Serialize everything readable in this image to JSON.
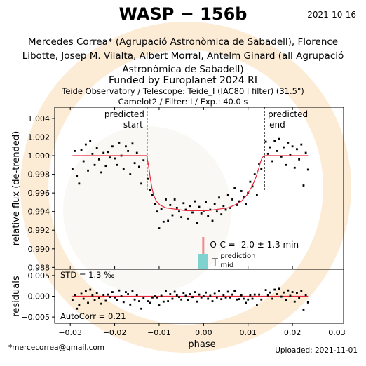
{
  "header": {
    "title": "WASP − 156b",
    "date": "2021-10-16",
    "authors_line1": "Mercedes Correa* (Agrupació Astronòmica de Sabadell), Florence",
    "authors_line2": "Libotte, Josep M. Vilalta, Albert Morral, Antelm Ginard (all Agrupació",
    "authors_line3": "Astronòmica de Sabadell)",
    "funded": "Funded by Europlanet 2024 RI",
    "observatory": "Teide Observatory / Telescope: Teide_I (IAC80 I filter) (31.5\")",
    "camera": "Camelot2 / Filter: I / Exp.: 40.0 s"
  },
  "footer": {
    "email": "*mercecorrea@gmail.com",
    "uploaded": "Uploaded: 2021-11-01"
  },
  "chart_data": [
    {
      "type": "scatter",
      "ylabel": "relative flux (de-trended)",
      "xlim": [
        -0.0335,
        0.0315
      ],
      "ylim": [
        0.9878,
        1.0052
      ],
      "xticks": [
        -0.03,
        -0.02,
        -0.01,
        0.0,
        0.01,
        0.02,
        0.03
      ],
      "xtick_labels": [
        "−0.03",
        "−0.02",
        "−0.01",
        "0.00",
        "0.01",
        "0.02",
        "0.03"
      ],
      "yticks": [
        0.988,
        0.99,
        0.992,
        0.994,
        0.996,
        0.998,
        1.0,
        1.002,
        1.004
      ],
      "ytick_labels": [
        "0.988",
        "0.990",
        "0.992",
        "0.994",
        "0.996",
        "0.998",
        "1.000",
        "1.002",
        "1.004"
      ],
      "predicted_start": -0.0127,
      "predicted_end": 0.0137,
      "predicted_start_label": "predicted\nstart",
      "predicted_end_label": "predicted\nend",
      "oc_label": "O-C = -2.0 ± 1.3 min",
      "tmid_label": "T",
      "tmid_sup": "prediction",
      "tmid_sub": "mid",
      "oc_x": 0.0,
      "model": {
        "name": "",
        "x": [
          -0.0295,
          -0.0128,
          -0.0124,
          -0.012,
          -0.0116,
          -0.0112,
          -0.0106,
          -0.0098,
          -0.0085,
          -0.007,
          -0.0055,
          -0.004,
          -0.0025,
          -0.001,
          0.0,
          0.001,
          0.0025,
          0.004,
          0.0055,
          0.007,
          0.0085,
          0.0098,
          0.011,
          0.0118,
          0.0124,
          0.0128,
          0.0132,
          0.0137,
          0.0235
        ],
        "y": [
          1.0,
          1.0,
          0.999,
          0.9976,
          0.9965,
          0.9957,
          0.9951,
          0.9947,
          0.9944,
          0.9943,
          0.9942,
          0.9941,
          0.9941,
          0.9941,
          0.9941,
          0.9941,
          0.9942,
          0.9943,
          0.9944,
          0.9947,
          0.9951,
          0.9958,
          0.9968,
          0.9977,
          0.9986,
          0.9993,
          0.9998,
          1.0,
          1.0
        ]
      },
      "points": {
        "x": [
          -0.0295,
          -0.029,
          -0.0285,
          -0.028,
          -0.0275,
          -0.027,
          -0.0265,
          -0.026,
          -0.0255,
          -0.025,
          -0.0245,
          -0.024,
          -0.0235,
          -0.023,
          -0.0225,
          -0.022,
          -0.0215,
          -0.021,
          -0.0205,
          -0.02,
          -0.0195,
          -0.019,
          -0.0185,
          -0.018,
          -0.0175,
          -0.017,
          -0.0165,
          -0.016,
          -0.0155,
          -0.015,
          -0.0145,
          -0.014,
          -0.0135,
          -0.0125,
          -0.012,
          -0.0115,
          -0.011,
          -0.0105,
          -0.01,
          -0.0095,
          -0.009,
          -0.0085,
          -0.008,
          -0.0075,
          -0.007,
          -0.0065,
          -0.006,
          -0.0055,
          -0.005,
          -0.0045,
          -0.004,
          -0.0035,
          -0.003,
          -0.0025,
          -0.002,
          -0.0015,
          -0.001,
          -0.0005,
          0.0,
          0.0005,
          0.001,
          0.0015,
          0.002,
          0.0025,
          0.003,
          0.0035,
          0.004,
          0.0045,
          0.005,
          0.0055,
          0.006,
          0.0065,
          0.007,
          0.0075,
          0.008,
          0.0085,
          0.009,
          0.0095,
          0.01,
          0.0105,
          0.011,
          0.0115,
          0.012,
          0.0125,
          0.013,
          0.014,
          0.0145,
          0.015,
          0.0155,
          0.016,
          0.0165,
          0.017,
          0.0175,
          0.018,
          0.0185,
          0.019,
          0.0195,
          0.02,
          0.0205,
          0.021,
          0.0215,
          0.022,
          0.0225,
          0.023,
          0.0235
        ],
        "y": [
          0.9986,
          1.0005,
          0.9978,
          0.997,
          1.0006,
          0.9994,
          1.0012,
          0.9984,
          1.0016,
          1.0002,
          0.999,
          1.0008,
          0.9996,
          0.9982,
          1.0003,
          0.9989,
          1.0004,
          0.9998,
          1.001,
          0.9997,
          0.999,
          1.0014,
          1.0,
          0.9986,
          1.001,
          1.0005,
          0.998,
          1.0013,
          0.9992,
          1.0003,
          0.9988,
          0.997,
          0.9995,
          0.9975,
          0.9963,
          0.9958,
          0.9948,
          0.994,
          0.9922,
          0.9943,
          0.9929,
          0.9953,
          0.993,
          0.9947,
          0.9936,
          0.9953,
          0.9944,
          0.994,
          0.9934,
          0.9949,
          0.9942,
          0.9932,
          0.9946,
          0.9939,
          0.9951,
          0.9928,
          0.9945,
          0.9938,
          0.9941,
          0.995,
          0.9935,
          0.9942,
          0.993,
          0.9948,
          0.994,
          0.9955,
          0.9937,
          0.9946,
          0.9942,
          0.9958,
          0.9944,
          0.9953,
          0.9965,
          0.9947,
          0.9951,
          0.9962,
          0.9956,
          0.9948,
          0.996,
          0.9972,
          0.9967,
          0.998,
          0.9958,
          0.9991,
          0.9986,
          1.0015,
          1.0002,
          1.0009,
          0.9994,
          1.0016,
          1.0005,
          1.0018,
          0.9999,
          1.0009,
          0.999,
          1.0014,
          1.0001,
          1.001,
          0.9987,
          1.0007,
          0.9996,
          1.0012,
          0.9968,
          1.0003,
          0.9985
        ]
      }
    },
    {
      "type": "scatter",
      "ylabel": "residuals",
      "xlabel": "phase",
      "ylim": [
        -0.0065,
        0.0065
      ],
      "yticks": [
        -0.005,
        0.0,
        0.005
      ],
      "ytick_labels": [
        "−0.005",
        "0.000",
        "0.005"
      ],
      "std_label": "STD = 1.3 ‰",
      "autocorr_label": "AutoCorr = 0.21",
      "residuals": [
        -0.001,
        0.0003,
        -0.003,
        -0.0021,
        0.0006,
        -0.0006,
        0.0012,
        -0.0016,
        0.0016,
        0.0002,
        -0.001,
        0.0008,
        -0.0004,
        -0.0018,
        0.0003,
        -0.0011,
        0.0004,
        -0.0002,
        0.001,
        -0.0003,
        -0.001,
        0.0014,
        0.0,
        -0.0014,
        0.001,
        0.0005,
        -0.002,
        0.0013,
        -0.0008,
        0.0003,
        -0.0012,
        -0.003,
        -0.0005,
        -0.0012,
        -0.0016,
        -0.0003,
        0.0,
        -0.0003,
        -0.0022,
        0.0001,
        -0.0013,
        0.0012,
        -0.0012,
        0.0005,
        -0.0006,
        0.0011,
        0.0002,
        -0.0002,
        -0.0008,
        0.0008,
        0.0001,
        -0.0009,
        0.0005,
        -0.0002,
        0.001,
        -0.0013,
        0.0004,
        -0.0003,
        0.0,
        0.0009,
        -0.0006,
        0.0001,
        -0.0012,
        0.0006,
        -0.0003,
        0.0012,
        -0.0007,
        0.0002,
        -0.0003,
        0.0011,
        -0.0003,
        0.0004,
        0.0013,
        -0.0008,
        -0.0007,
        0.0002,
        -0.0006,
        -0.0016,
        -0.0008,
        0.0002,
        -0.0006,
        0.0004,
        -0.0022,
        0.0004,
        -0.0008,
        0.0015,
        0.0002,
        0.0009,
        -0.0006,
        0.0016,
        0.0005,
        0.0018,
        -0.0001,
        0.0009,
        -0.001,
        0.0014,
        0.0001,
        0.001,
        -0.0013,
        0.0007,
        -0.0004,
        0.0012,
        -0.0032,
        0.0003,
        -0.0015
      ]
    }
  ]
}
